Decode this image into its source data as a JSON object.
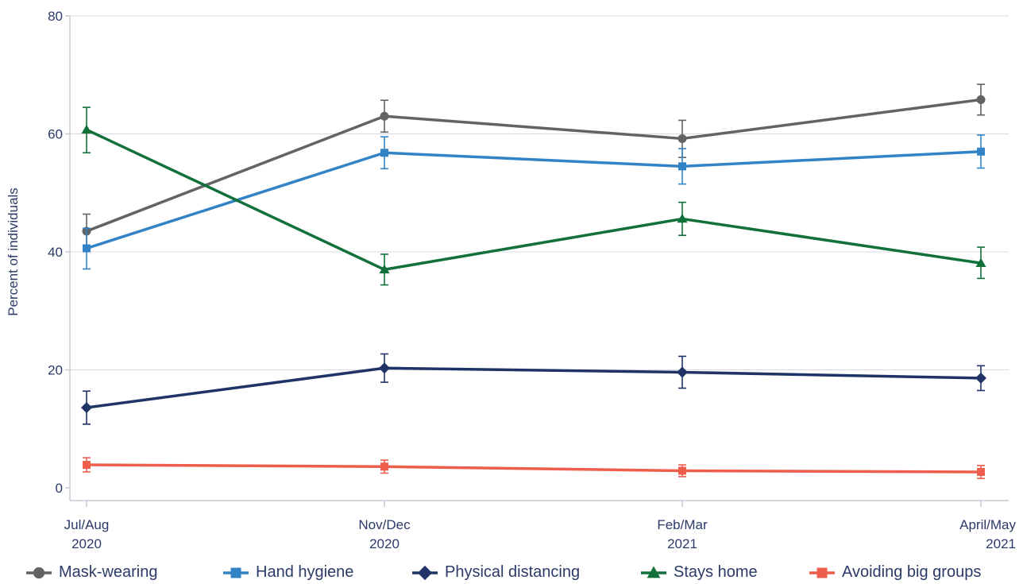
{
  "chart_data": {
    "type": "line",
    "title": "",
    "xlabel": "",
    "ylabel": "Percent of individuals",
    "ylim": [
      0,
      80
    ],
    "yticks": [
      0,
      20,
      40,
      60,
      80
    ],
    "categories": [
      {
        "line1": "Jul/Aug",
        "line2": "2020"
      },
      {
        "line1": "Nov/Dec",
        "line2": "2020"
      },
      {
        "line1": "Feb/Mar",
        "line2": "2021"
      },
      {
        "line1": "April/May",
        "line2": "2021"
      }
    ],
    "grid": true,
    "legend_position": "bottom",
    "series": [
      {
        "name": "Mask-wearing",
        "color": "#636363",
        "marker": "circle",
        "values": [
          43.5,
          63.0,
          59.2,
          65.8
        ],
        "lower": [
          40.7,
          60.3,
          56.0,
          63.2
        ],
        "upper": [
          46.4,
          65.7,
          62.3,
          68.4
        ]
      },
      {
        "name": "Hand hygiene",
        "color": "#3283c6",
        "marker": "square",
        "values": [
          40.6,
          56.8,
          54.5,
          57.0
        ],
        "lower": [
          37.1,
          54.1,
          51.5,
          54.2
        ],
        "upper": [
          44.0,
          59.5,
          57.5,
          59.8
        ]
      },
      {
        "name": "Physical distancing",
        "color": "#1f3366",
        "marker": "diamond",
        "values": [
          13.6,
          20.3,
          19.6,
          18.6
        ],
        "lower": [
          10.8,
          17.9,
          16.9,
          16.5
        ],
        "upper": [
          16.4,
          22.7,
          22.3,
          20.7
        ]
      },
      {
        "name": "Stays home",
        "color": "#12703a",
        "marker": "triangle",
        "values": [
          60.7,
          37.0,
          45.6,
          38.1
        ],
        "lower": [
          56.8,
          34.4,
          42.8,
          35.5
        ],
        "upper": [
          64.5,
          39.6,
          48.4,
          40.8
        ]
      },
      {
        "name": "Avoiding big groups",
        "color": "#ef5d4c",
        "marker": "square",
        "values": [
          3.9,
          3.6,
          2.9,
          2.7
        ],
        "lower": [
          2.7,
          2.5,
          1.9,
          1.6
        ],
        "upper": [
          5.1,
          4.7,
          3.9,
          3.8
        ]
      }
    ]
  }
}
